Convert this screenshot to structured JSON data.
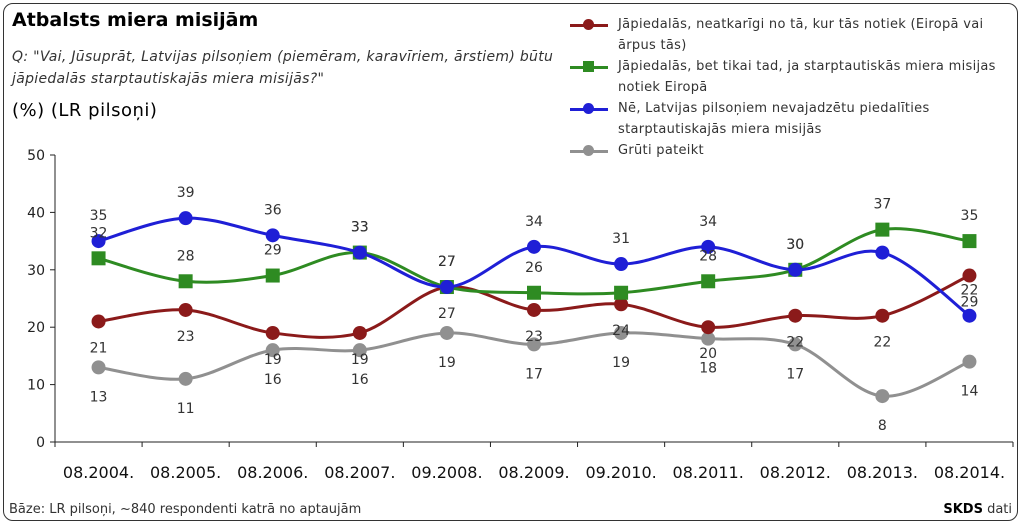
{
  "header": {
    "title": "Atbalsts miera misijām",
    "question": "Q: \"Vai, Jūsuprāt, Latvijas pilsoņiem (piemēram, karavīriem, ārstiem) būtu jāpiedalās starptautiskajās miera misijās?\"",
    "unit": "(%) (LR pilsoņi)"
  },
  "footer": {
    "note": "Bāze: LR pilsoņi, ~840 respondenti katrā no aptaujām",
    "source_brand": "SKDS",
    "source_suffix": " dati"
  },
  "chart_data": {
    "type": "line",
    "categories": [
      "08.2004.",
      "08.2005.",
      "08.2006.",
      "08.2007.",
      "09.2008.",
      "08.2009.",
      "09.2010.",
      "08.2011.",
      "08.2012.",
      "08.2013.",
      "08.2014."
    ],
    "ylim": [
      0,
      50
    ],
    "yticks": [
      0,
      10,
      20,
      30,
      40,
      50
    ],
    "grid": false,
    "legend_position": "top-right",
    "series": [
      {
        "name": "Jāpiedalās, neatkarīgi no tā, kur tās notiek (Eiropā vai ārpus tās)",
        "values": [
          21,
          23,
          19,
          19,
          27,
          23,
          24,
          20,
          22,
          22,
          29
        ],
        "color": "#8B1A1A",
        "marker": "circle"
      },
      {
        "name": "Jāpiedalās, bet tikai tad, ja starptautiskās miera misijas notiek Eiropā",
        "values": [
          32,
          28,
          29,
          33,
          27,
          26,
          26,
          28,
          30,
          37,
          35
        ],
        "color": "#2E8B22",
        "marker": "square"
      },
      {
        "name": "Nē, Latvijas pilsoņiem nevajadzētu piedalīties starptautiskajās miera misijās",
        "values": [
          35,
          39,
          36,
          33,
          27,
          34,
          31,
          34,
          30,
          33,
          22
        ],
        "color": "#1F1FD6",
        "marker": "circle"
      },
      {
        "name": "Grūti pateikt",
        "values": [
          13,
          11,
          16,
          16,
          19,
          17,
          19,
          18,
          17,
          8,
          14
        ],
        "color": "#909090",
        "marker": "circle"
      }
    ],
    "data_labels": [
      [
        "21",
        "23",
        "19",
        "19",
        "27",
        "23",
        "24",
        "20",
        "22",
        "22",
        "29"
      ],
      [
        "32",
        "28",
        "29",
        "33",
        "27",
        "26",
        "",
        "28",
        "30",
        "37",
        "35"
      ],
      [
        "35",
        "39",
        "36",
        "33",
        "27",
        "34",
        "31",
        "34",
        "30",
        "",
        "22"
      ],
      [
        "13",
        "11",
        "16",
        "16",
        "19",
        "17",
        "19",
        "18",
        "17",
        "8",
        "14"
      ]
    ]
  }
}
